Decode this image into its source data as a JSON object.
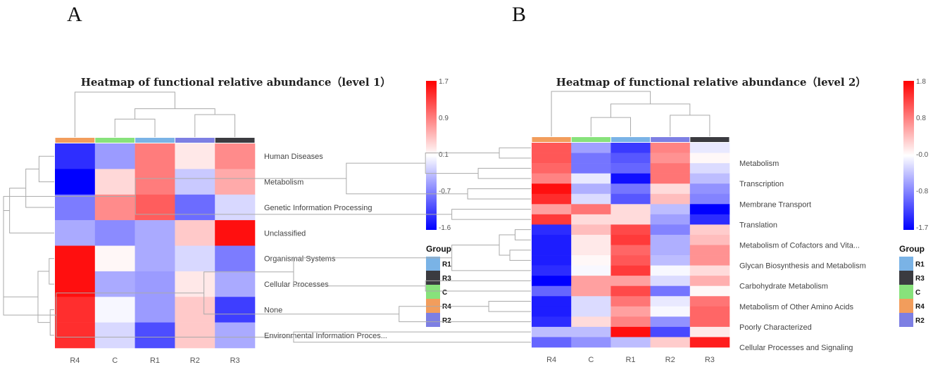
{
  "panel_letters": [
    "A",
    "B"
  ],
  "group_legend": {
    "title": "Group",
    "items": [
      {
        "label": "R1",
        "color": "#7ab3e6"
      },
      {
        "label": "R3",
        "color": "#3b3b40"
      },
      {
        "label": "C",
        "color": "#87e27b"
      },
      {
        "label": "R4",
        "color": "#f29d5c"
      },
      {
        "label": "R2",
        "color": "#7d7fe3"
      }
    ]
  },
  "chart_data": [
    {
      "type": "heatmap",
      "title": "Heatmap of functional relative abundance（level 1）",
      "columns": [
        "R4",
        "C",
        "R1",
        "R2",
        "R3"
      ],
      "rows": [
        "Human Diseases",
        "Metabolism",
        "Genetic Information Processing",
        "Unclassified",
        "Organismal Systems",
        "Cellular Processes",
        "None",
        "Environmental Information Proces..."
      ],
      "row_label_every": 1,
      "values": [
        [
          -1.3,
          -0.6,
          0.9,
          0.2,
          0.8
        ],
        [
          -1.6,
          0.3,
          0.9,
          -0.3,
          0.6
        ],
        [
          -0.8,
          0.8,
          1.1,
          -0.9,
          -0.2
        ],
        [
          -0.5,
          -0.7,
          -0.5,
          0.4,
          1.6
        ],
        [
          1.6,
          0.1,
          -0.5,
          -0.2,
          -0.8
        ],
        [
          1.6,
          -0.5,
          -0.6,
          0.2,
          -0.5
        ],
        [
          1.4,
          0.0,
          -0.6,
          0.4,
          -1.2
        ],
        [
          1.4,
          -0.2,
          -1.1,
          0.4,
          -0.5
        ]
      ],
      "color_range": [
        -1.6,
        1.7
      ],
      "colorbar_ticks": [
        "1.7",
        "0.9",
        "0.1",
        "-0.7",
        "-1.6"
      ]
    },
    {
      "type": "heatmap",
      "title": "Heatmap of functional relative abundance（level 2）",
      "columns": [
        "R4",
        "C",
        "R1",
        "R2",
        "R3"
      ],
      "rows": [
        "",
        "Metabolism",
        "",
        "Transcription",
        "",
        "Membrane Transport",
        "",
        "Translation",
        "",
        "Metabolism of Cofactors and Vita...",
        "",
        "Glycan Biosynthesis and Metabolism",
        "",
        "Carbohydrate Metabolism",
        "",
        "Metabolism of Other Amino Acids",
        "",
        "Poorly Characterized",
        "",
        "Cellular Processes and Signaling"
      ],
      "values": [
        [
          1.2,
          -0.6,
          -1.3,
          0.9,
          -0.1
        ],
        [
          1.2,
          -0.9,
          -1.1,
          0.8,
          0.1
        ],
        [
          1.1,
          -0.9,
          -1.0,
          1.0,
          -0.2
        ],
        [
          0.9,
          -0.1,
          -1.6,
          1.0,
          -0.4
        ],
        [
          1.7,
          -0.5,
          -0.9,
          0.3,
          -0.7
        ],
        [
          1.5,
          -0.2,
          -1.1,
          0.5,
          -0.8
        ],
        [
          0.7,
          1.0,
          0.3,
          -0.4,
          -1.7
        ],
        [
          1.4,
          0.3,
          0.3,
          -0.6,
          -1.4
        ],
        [
          -1.4,
          0.5,
          1.3,
          -0.8,
          0.4
        ],
        [
          -1.5,
          0.2,
          1.4,
          -0.5,
          0.5
        ],
        [
          -1.5,
          0.2,
          1.1,
          -0.5,
          0.8
        ],
        [
          -1.5,
          0.1,
          1.2,
          -0.4,
          0.8
        ],
        [
          -1.4,
          0.0,
          1.4,
          0.0,
          0.3
        ],
        [
          -1.7,
          0.7,
          0.7,
          -0.2,
          0.6
        ],
        [
          -1.0,
          0.7,
          1.3,
          -0.9,
          0.1
        ],
        [
          -1.5,
          -0.2,
          1.0,
          -0.1,
          1.0
        ],
        [
          -1.5,
          -0.2,
          0.7,
          0.0,
          1.1
        ],
        [
          -1.4,
          0.3,
          0.9,
          -0.7,
          1.1
        ],
        [
          -0.4,
          -0.4,
          1.7,
          -1.2,
          0.2
        ],
        [
          -1.0,
          -0.7,
          -0.4,
          0.4,
          1.6
        ]
      ],
      "color_range": [
        -1.7,
        1.8
      ],
      "colorbar_ticks": [
        "1.8",
        "0.8",
        "-0.0",
        "-0.8",
        "-1.7"
      ]
    }
  ]
}
